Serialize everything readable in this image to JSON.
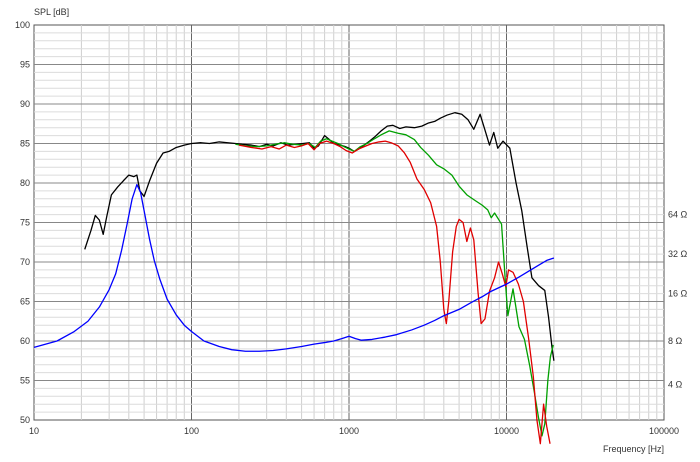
{
  "chart_data": {
    "type": "line",
    "ylabel": "SPL [dB]",
    "xlabel": "Frequency [Hz]",
    "x_scale": "log",
    "xlim": [
      10,
      100000
    ],
    "ylim": [
      50,
      100
    ],
    "grid": true,
    "legend": "none",
    "x_ticks": [
      "10",
      "100",
      "1000",
      "10000",
      "100000"
    ],
    "y_ticks": [
      "100",
      "95",
      "90",
      "85",
      "80",
      "75",
      "70",
      "65",
      "60",
      "55",
      "50"
    ],
    "impedance_axis": {
      "unit": "Ω",
      "ticks": [
        {
          "label": "64 Ω",
          "value": 64,
          "spl_equiv": 76
        },
        {
          "label": "32 Ω",
          "value": 32,
          "spl_equiv": 71
        },
        {
          "label": "16 Ω",
          "value": 16,
          "spl_equiv": 66
        },
        {
          "label": "8 Ω",
          "value": 8,
          "spl_equiv": 60
        },
        {
          "label": "4 Ω",
          "value": 4,
          "spl_equiv": 54.5
        }
      ]
    },
    "series": [
      {
        "color": "#000000",
        "points": [
          [
            21,
            71.6
          ],
          [
            23,
            74
          ],
          [
            24.5,
            75.9
          ],
          [
            26,
            75.3
          ],
          [
            27.5,
            73.5
          ],
          [
            29,
            75.8
          ],
          [
            31,
            78.5
          ],
          [
            34,
            79.5
          ],
          [
            37,
            80.3
          ],
          [
            40,
            81
          ],
          [
            43,
            80.8
          ],
          [
            45,
            81
          ],
          [
            47,
            79
          ],
          [
            50,
            78.3
          ],
          [
            54,
            80.2
          ],
          [
            60,
            82.5
          ],
          [
            66,
            83.8
          ],
          [
            72,
            84
          ],
          [
            80,
            84.5
          ],
          [
            90,
            84.8
          ],
          [
            100,
            85
          ],
          [
            115,
            85.1
          ],
          [
            130,
            85
          ],
          [
            150,
            85.2
          ],
          [
            170,
            85.1
          ],
          [
            190,
            85
          ],
          [
            210,
            84.9
          ],
          [
            240,
            84.8
          ],
          [
            270,
            84.6
          ],
          [
            300,
            84.9
          ],
          [
            330,
            84.7
          ],
          [
            370,
            85.1
          ],
          [
            410,
            84.8
          ],
          [
            460,
            84.9
          ],
          [
            510,
            85
          ],
          [
            560,
            85.1
          ],
          [
            600,
            84.4
          ],
          [
            640,
            84.7
          ],
          [
            700,
            86
          ],
          [
            750,
            85.5
          ],
          [
            800,
            85
          ],
          [
            880,
            84.8
          ],
          [
            950,
            84.6
          ],
          [
            1000,
            84.4
          ],
          [
            1080,
            84
          ],
          [
            1150,
            84.3
          ],
          [
            1250,
            84.8
          ],
          [
            1350,
            85.3
          ],
          [
            1450,
            85.8
          ],
          [
            1600,
            86.6
          ],
          [
            1750,
            87.2
          ],
          [
            1900,
            87.3
          ],
          [
            2100,
            86.9
          ],
          [
            2300,
            87.1
          ],
          [
            2600,
            87
          ],
          [
            2900,
            87.2
          ],
          [
            3200,
            87.6
          ],
          [
            3500,
            87.8
          ],
          [
            3800,
            88.2
          ],
          [
            4200,
            88.6
          ],
          [
            4700,
            88.9
          ],
          [
            5200,
            88.7
          ],
          [
            5700,
            88
          ],
          [
            6200,
            86.8
          ],
          [
            6800,
            88.7
          ],
          [
            7300,
            86.7
          ],
          [
            7800,
            84.8
          ],
          [
            8300,
            86.4
          ],
          [
            8800,
            84.4
          ],
          [
            9500,
            85.3
          ],
          [
            10500,
            84.4
          ],
          [
            11500,
            80
          ],
          [
            12500,
            76.5
          ],
          [
            13500,
            72
          ],
          [
            14500,
            68
          ],
          [
            16000,
            67
          ],
          [
            17500,
            66.4
          ],
          [
            18500,
            63
          ],
          [
            19500,
            59
          ],
          [
            20000,
            57.5
          ]
        ]
      },
      {
        "color": "#00a000",
        "points": [
          [
            190,
            84.9
          ],
          [
            220,
            84.7
          ],
          [
            260,
            84.6
          ],
          [
            300,
            84.7
          ],
          [
            340,
            84.9
          ],
          [
            390,
            85.1
          ],
          [
            440,
            84.9
          ],
          [
            500,
            84.8
          ],
          [
            560,
            85
          ],
          [
            610,
            84.5
          ],
          [
            660,
            85.3
          ],
          [
            720,
            85.6
          ],
          [
            780,
            85.3
          ],
          [
            850,
            85
          ],
          [
            930,
            84.6
          ],
          [
            1000,
            84.3
          ],
          [
            1080,
            84
          ],
          [
            1180,
            84.6
          ],
          [
            1300,
            85
          ],
          [
            1450,
            85.6
          ],
          [
            1600,
            86.1
          ],
          [
            1800,
            86.6
          ],
          [
            2050,
            86.3
          ],
          [
            2300,
            86.1
          ],
          [
            2600,
            85.5
          ],
          [
            2850,
            84.5
          ],
          [
            3200,
            83.5
          ],
          [
            3600,
            82.3
          ],
          [
            4000,
            81.8
          ],
          [
            4500,
            81
          ],
          [
            5000,
            79.6
          ],
          [
            5600,
            78.5
          ],
          [
            6300,
            77.8
          ],
          [
            7000,
            77.2
          ],
          [
            7600,
            76.6
          ],
          [
            8000,
            75.6
          ],
          [
            8400,
            76.2
          ],
          [
            8900,
            75.4
          ],
          [
            9300,
            74.8
          ],
          [
            9800,
            68
          ],
          [
            10200,
            63.2
          ],
          [
            11000,
            66.6
          ],
          [
            12000,
            61.8
          ],
          [
            13000,
            60.2
          ],
          [
            14000,
            57
          ],
          [
            15000,
            53.6
          ],
          [
            16000,
            50.2
          ],
          [
            16800,
            48
          ],
          [
            17500,
            49.5
          ],
          [
            18300,
            55
          ],
          [
            19000,
            58
          ],
          [
            19800,
            59.5
          ]
        ]
      },
      {
        "color": "#e00000",
        "points": [
          [
            200,
            84.8
          ],
          [
            240,
            84.5
          ],
          [
            280,
            84.3
          ],
          [
            320,
            84.6
          ],
          [
            360,
            84.3
          ],
          [
            400,
            84.8
          ],
          [
            450,
            84.5
          ],
          [
            500,
            84.7
          ],
          [
            550,
            85
          ],
          [
            600,
            84.2
          ],
          [
            650,
            85
          ],
          [
            720,
            85.3
          ],
          [
            800,
            85
          ],
          [
            880,
            84.6
          ],
          [
            960,
            84.1
          ],
          [
            1050,
            83.8
          ],
          [
            1150,
            84.3
          ],
          [
            1250,
            84.6
          ],
          [
            1400,
            85
          ],
          [
            1550,
            85.2
          ],
          [
            1700,
            85.3
          ],
          [
            1850,
            85.1
          ],
          [
            2050,
            84.7
          ],
          [
            2250,
            83.8
          ],
          [
            2450,
            82.6
          ],
          [
            2700,
            80.5
          ],
          [
            3000,
            79.2
          ],
          [
            3300,
            77.5
          ],
          [
            3600,
            74.5
          ],
          [
            3800,
            70
          ],
          [
            4000,
            64
          ],
          [
            4150,
            62.2
          ],
          [
            4300,
            65
          ],
          [
            4550,
            71.3
          ],
          [
            4800,
            74.5
          ],
          [
            5000,
            75.4
          ],
          [
            5300,
            75
          ],
          [
            5600,
            72.6
          ],
          [
            5900,
            74.3
          ],
          [
            6200,
            72.8
          ],
          [
            6600,
            66.1
          ],
          [
            6900,
            62.2
          ],
          [
            7300,
            62.8
          ],
          [
            7800,
            66.3
          ],
          [
            8400,
            68
          ],
          [
            8900,
            70
          ],
          [
            9400,
            68.5
          ],
          [
            9900,
            66.9
          ],
          [
            10300,
            69
          ],
          [
            11000,
            68.7
          ],
          [
            11900,
            67.2
          ],
          [
            12800,
            65
          ],
          [
            13800,
            60.4
          ],
          [
            14800,
            55.5
          ],
          [
            15600,
            50
          ],
          [
            16400,
            47
          ],
          [
            17200,
            52
          ],
          [
            18000,
            49.2
          ],
          [
            18900,
            47
          ]
        ]
      },
      {
        "color": "#0000ff",
        "points": [
          [
            10,
            59.2
          ],
          [
            14,
            60
          ],
          [
            18,
            61.2
          ],
          [
            22,
            62.5
          ],
          [
            26,
            64.3
          ],
          [
            30,
            66.5
          ],
          [
            33,
            68.5
          ],
          [
            36,
            71.5
          ],
          [
            39,
            74.8
          ],
          [
            42,
            78
          ],
          [
            45,
            79.8
          ],
          [
            47.5,
            78.8
          ],
          [
            50,
            76.5
          ],
          [
            54,
            73
          ],
          [
            58,
            70.2
          ],
          [
            63,
            67.8
          ],
          [
            70,
            65.3
          ],
          [
            80,
            63.3
          ],
          [
            90,
            62
          ],
          [
            100,
            61.2
          ],
          [
            120,
            60
          ],
          [
            150,
            59.3
          ],
          [
            180,
            58.9
          ],
          [
            220,
            58.7
          ],
          [
            270,
            58.7
          ],
          [
            330,
            58.8
          ],
          [
            400,
            59
          ],
          [
            500,
            59.3
          ],
          [
            600,
            59.6
          ],
          [
            700,
            59.8
          ],
          [
            800,
            60
          ],
          [
            900,
            60.3
          ],
          [
            1000,
            60.6
          ],
          [
            1100,
            60.3
          ],
          [
            1200,
            60.1
          ],
          [
            1400,
            60.2
          ],
          [
            1700,
            60.5
          ],
          [
            2000,
            60.8
          ],
          [
            2500,
            61.4
          ],
          [
            3000,
            62
          ],
          [
            3500,
            62.6
          ],
          [
            4000,
            63.2
          ],
          [
            5000,
            64
          ],
          [
            6000,
            64.9
          ],
          [
            7000,
            65.6
          ],
          [
            8000,
            66.3
          ],
          [
            10000,
            67.2
          ],
          [
            12000,
            68.1
          ],
          [
            14000,
            68.9
          ],
          [
            16000,
            69.6
          ],
          [
            18000,
            70.2
          ],
          [
            20000,
            70.5
          ]
        ]
      }
    ]
  }
}
